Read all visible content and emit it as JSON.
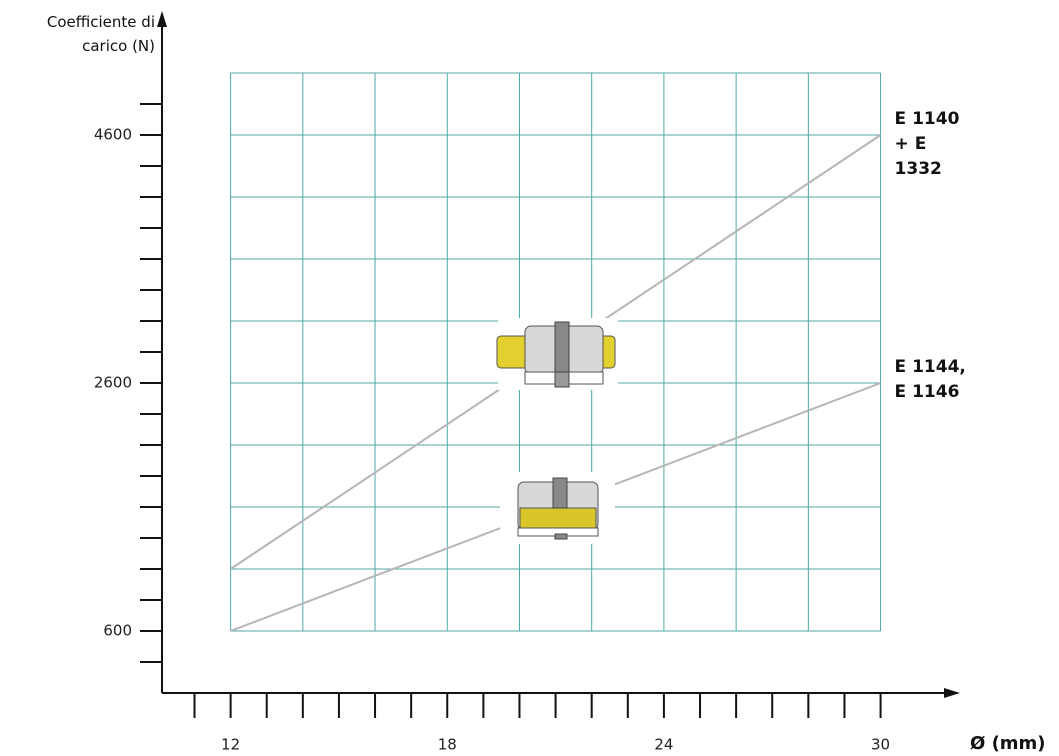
{
  "chart_data": {
    "type": "line",
    "y_label": "Coefficiente di carico (N)",
    "x_label": "Ø (mm)",
    "xlim": [
      10.1,
      32.2
    ],
    "ylim": [
      100,
      5600
    ],
    "xticks": [
      12,
      18,
      24,
      30
    ],
    "yticks": [
      600,
      2600,
      4600
    ],
    "xminorticks": [
      11,
      12,
      13,
      14,
      15,
      16,
      17,
      18,
      19,
      20,
      21,
      22,
      23,
      24,
      25,
      26,
      27,
      28,
      29,
      30
    ],
    "yminorticks": [
      350,
      600,
      850,
      1100,
      1350,
      1600,
      1850,
      2100,
      2350,
      2600,
      2850,
      3100,
      3350,
      3600,
      3850,
      4100,
      4350,
      4600,
      4850
    ],
    "xgrid": [
      12,
      14,
      16,
      18,
      20,
      22,
      24,
      26,
      28,
      30
    ],
    "ygrid": [
      600,
      1100,
      1600,
      2100,
      2600,
      3100,
      3600,
      4100,
      4600,
      5100
    ],
    "grid_color": "#4fa9a6",
    "x": [
      12,
      30
    ],
    "series": [
      {
        "name": "E 1140 + E 1332",
        "color": "#b5b5b5",
        "values": [
          1100,
          4600
        ]
      },
      {
        "name": "E 1144, E 1146",
        "color": "#b5b5b5",
        "values": [
          600,
          2600
        ]
      }
    ]
  }
}
